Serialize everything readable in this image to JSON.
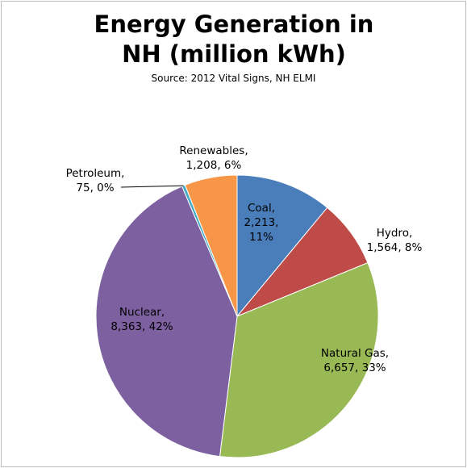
{
  "chart_data": {
    "type": "pie",
    "title": "Energy Generation in NH (million kWh)",
    "subtitle": "Source: 2012 Vital Signs, NH ELMI",
    "categories": [
      "Coal",
      "Hydro",
      "Natural Gas",
      "Nuclear",
      "Petroleum",
      "Renewables"
    ],
    "values": [
      2213,
      1564,
      6657,
      8363,
      75,
      1208
    ],
    "value_labels": [
      "2,213",
      "1,564",
      "6,657",
      "8,363",
      "75",
      "1,208"
    ],
    "percents": [
      11,
      8,
      33,
      42,
      0,
      6
    ],
    "percent_labels": [
      "11%",
      "8%",
      "33%",
      "42%",
      "0%",
      "6%"
    ],
    "colors": [
      "#4a7ebb",
      "#be4b48",
      "#98b954",
      "#7d60a0",
      "#46aac5",
      "#f79646"
    ]
  }
}
